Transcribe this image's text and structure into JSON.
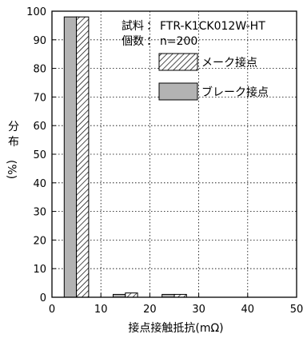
{
  "chart_data": {
    "type": "bar",
    "info": {
      "sample_label": "試料",
      "sample_value": "FTR-K1CK012W-HT",
      "count_label": "個数",
      "count_value": "n=200"
    },
    "xlabel": "接点接触抵抗(mΩ)",
    "ylabel": [
      "分",
      "布",
      "(%)"
    ],
    "xlim": [
      0,
      50
    ],
    "ylim": [
      0,
      100
    ],
    "xticks": [
      0,
      10,
      20,
      30,
      40,
      50
    ],
    "xtick_labels": [
      "0",
      "10",
      "20",
      "30",
      "40",
      "50"
    ],
    "yticks": [
      0,
      10,
      20,
      30,
      40,
      50,
      60,
      70,
      80,
      90,
      100
    ],
    "grid": true,
    "legend_position": "top-right",
    "bins": [
      {
        "from": 0,
        "to": 10
      },
      {
        "from": 10,
        "to": 20
      },
      {
        "from": 20,
        "to": 30
      }
    ],
    "series": [
      {
        "name": "ブレーク接点",
        "pattern": "gray",
        "color": "#b3b3b3",
        "values": [
          98,
          1,
          1
        ]
      },
      {
        "name": "メーク接点",
        "pattern": "hatched",
        "color": "#ffffff",
        "values": [
          98,
          1.5,
          1
        ]
      }
    ]
  }
}
